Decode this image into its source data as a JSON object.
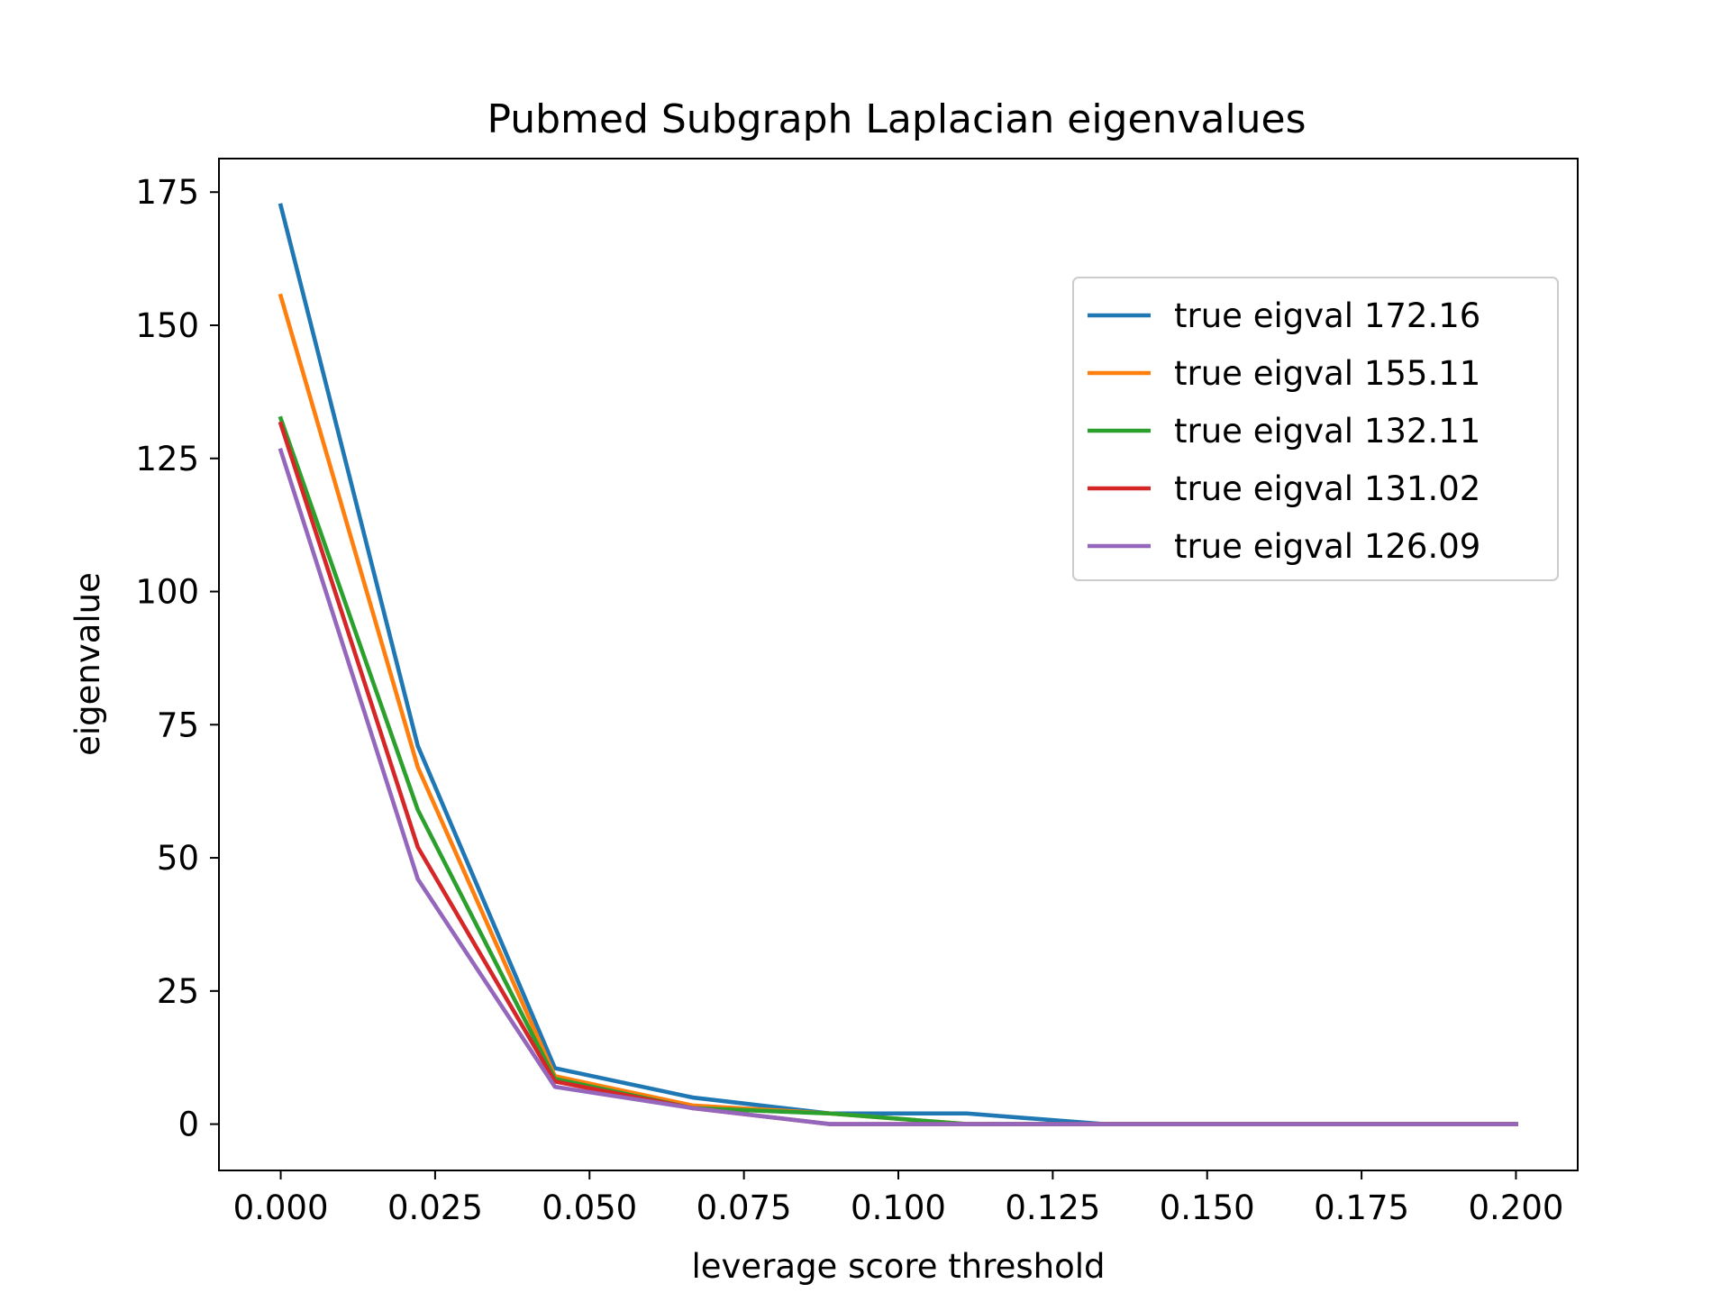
{
  "chart_data": {
    "type": "line",
    "title": "Pubmed Subgraph Laplacian eigenvalues",
    "xlabel": "leverage score threshold",
    "ylabel": "eigenvalue",
    "xlim": [
      -0.01,
      0.21
    ],
    "ylim": [
      -8.7,
      181.3
    ],
    "xticks": [
      0.0,
      0.025,
      0.05,
      0.075,
      0.1,
      0.125,
      0.15,
      0.175,
      0.2
    ],
    "xtick_labels": [
      "0.000",
      "0.025",
      "0.050",
      "0.075",
      "0.100",
      "0.125",
      "0.150",
      "0.175",
      "0.200"
    ],
    "yticks": [
      0,
      25,
      50,
      75,
      100,
      125,
      150,
      175
    ],
    "ytick_labels": [
      "0",
      "25",
      "50",
      "75",
      "100",
      "125",
      "150",
      "175"
    ],
    "grid": false,
    "legend_position": "upper-right",
    "x": [
      0.0,
      0.0222,
      0.0444,
      0.0667,
      0.0889,
      0.1111,
      0.1333,
      0.1556,
      0.1778,
      0.2
    ],
    "series": [
      {
        "name": "true eigval 172.16",
        "color": "#1f77b4",
        "values": [
          172.5,
          71.0,
          10.5,
          5.0,
          2.0,
          2.0,
          0.0,
          0.0,
          0.0,
          0.0
        ]
      },
      {
        "name": "true eigval 155.11",
        "color": "#ff7f0e",
        "values": [
          155.5,
          67.0,
          9.0,
          3.5,
          2.0,
          0.0,
          0.0,
          0.0,
          0.0,
          0.0
        ]
      },
      {
        "name": "true eigval 132.11",
        "color": "#2ca02c",
        "values": [
          132.5,
          59.0,
          8.5,
          3.0,
          2.0,
          0.0,
          0.0,
          0.0,
          0.0,
          0.0
        ]
      },
      {
        "name": "true eigval 131.02",
        "color": "#d62728",
        "values": [
          131.5,
          52.0,
          8.0,
          3.0,
          0.0,
          0.0,
          0.0,
          0.0,
          0.0,
          0.0
        ]
      },
      {
        "name": "true eigval 126.09",
        "color": "#9467bd",
        "values": [
          126.5,
          46.0,
          7.0,
          3.0,
          0.0,
          0.0,
          0.0,
          0.0,
          0.0,
          0.0
        ]
      }
    ]
  }
}
